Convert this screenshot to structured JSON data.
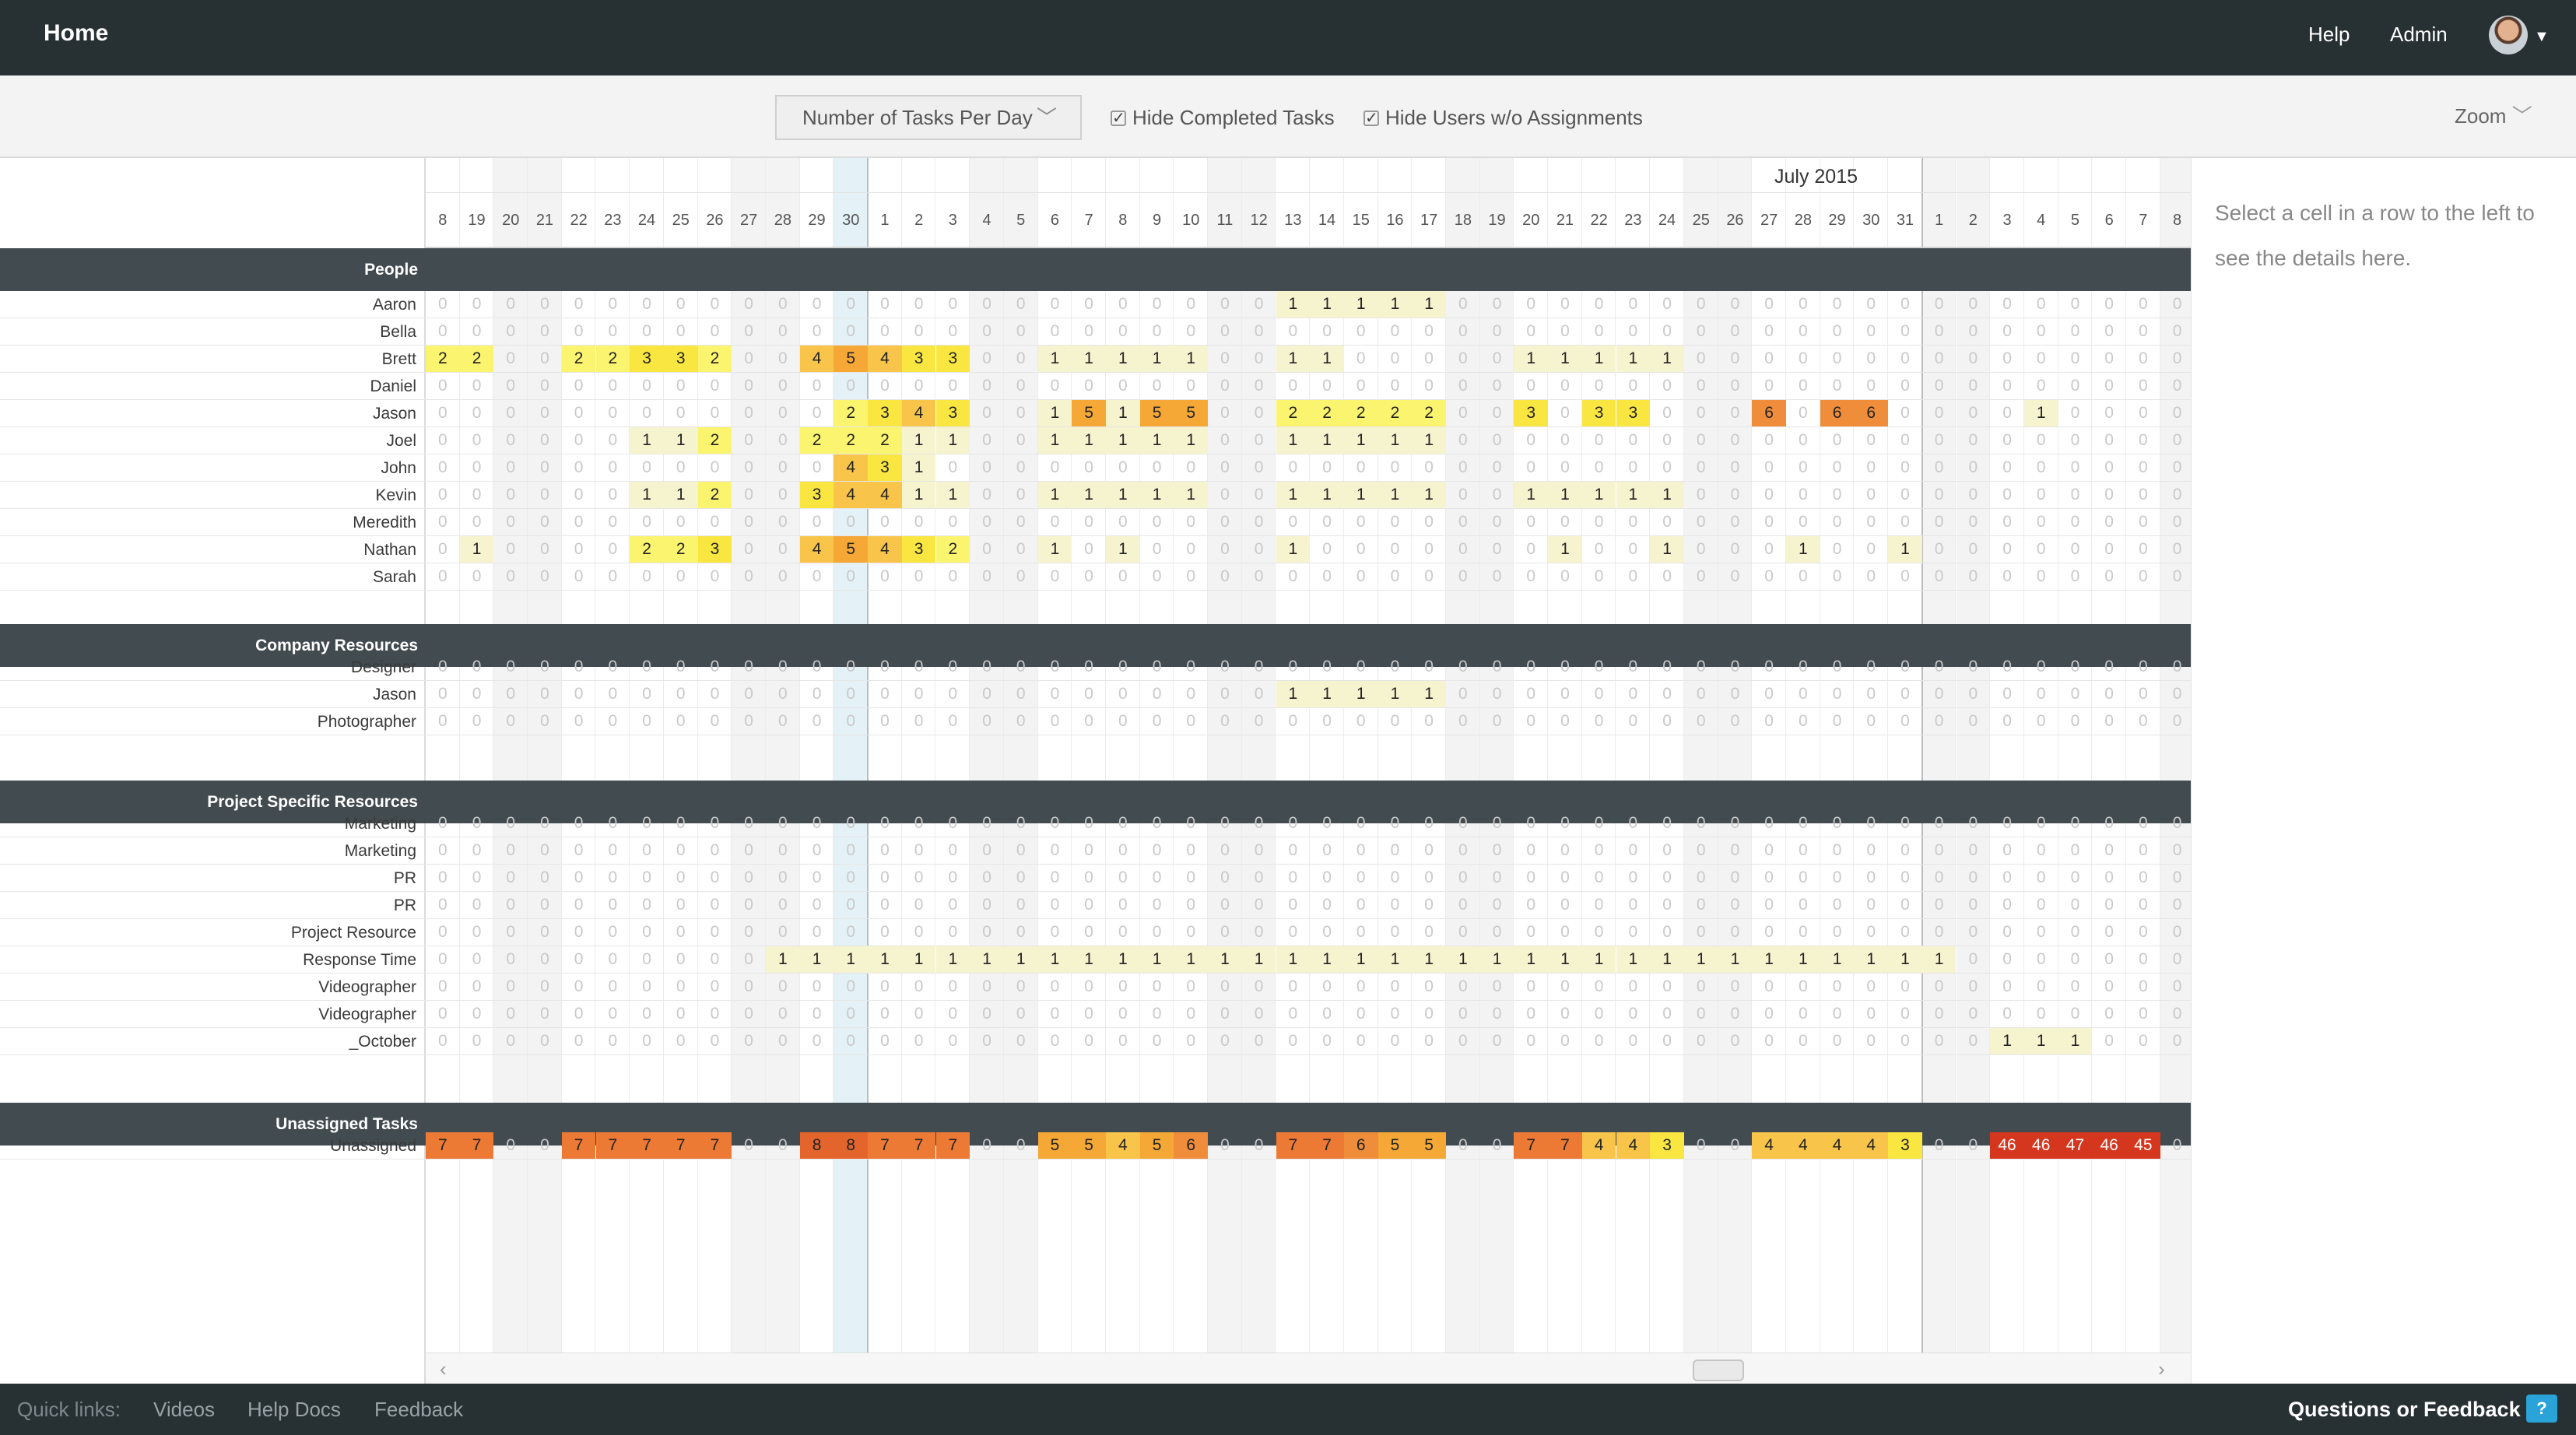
{
  "topbar": {
    "home": "Home",
    "help": "Help",
    "admin": "Admin"
  },
  "toolbar": {
    "view_select": "Number of Tasks Per Day",
    "hide_completed": "Hide Completed Tasks",
    "hide_users": "Hide Users w/o Assignments",
    "zoom": "Zoom"
  },
  "calendar": {
    "month": "July 2015",
    "days": [
      "8",
      "19",
      "20",
      "21",
      "22",
      "23",
      "24",
      "25",
      "26",
      "27",
      "28",
      "29",
      "30",
      "1",
      "2",
      "3",
      "4",
      "5",
      "6",
      "7",
      "8",
      "9",
      "10",
      "11",
      "12",
      "13",
      "14",
      "15",
      "16",
      "17",
      "18",
      "19",
      "20",
      "21",
      "22",
      "23",
      "24",
      "25",
      "26",
      "27",
      "28",
      "29",
      "30",
      "31",
      "1",
      "2",
      "3",
      "4",
      "5",
      "6",
      "7",
      "8"
    ],
    "weekend_cols": [
      2,
      3,
      9,
      10,
      16,
      17,
      23,
      24,
      30,
      31,
      37,
      38,
      44,
      45,
      51
    ],
    "today_col": 12,
    "month_divider_cols": [
      13,
      44
    ]
  },
  "sections": [
    {
      "title": "People",
      "rows": [
        {
          "name": "Aaron",
          "v": {
            "25": 1,
            "26": 1,
            "27": 1,
            "28": 1,
            "29": 1
          }
        },
        {
          "name": "Bella",
          "v": {}
        },
        {
          "name": "Brett",
          "v": {
            "0": 2,
            "1": 2,
            "4": 2,
            "5": 2,
            "6": 3,
            "7": 3,
            "8": 2,
            "11": 4,
            "12": 5,
            "13": 4,
            "14": 3,
            "15": 3,
            "18": 1,
            "19": 1,
            "20": 1,
            "21": 1,
            "22": 1,
            "25": 1,
            "26": 1,
            "32": 1,
            "33": 1,
            "34": 1,
            "35": 1,
            "36": 1
          }
        },
        {
          "name": "Daniel",
          "v": {}
        },
        {
          "name": "Jason",
          "v": {
            "12": 2,
            "13": 3,
            "14": 4,
            "15": 3,
            "18": 1,
            "19": 5,
            "20": 1,
            "21": 5,
            "22": 5,
            "25": 2,
            "26": 2,
            "27": 2,
            "28": 2,
            "29": 2,
            "32": 3,
            "34": 3,
            "35": 3,
            "39": 6,
            "41": 6,
            "42": 6,
            "47": 1
          }
        },
        {
          "name": "Joel",
          "v": {
            "6": 1,
            "7": 1,
            "8": 2,
            "11": 2,
            "12": 2,
            "13": 2,
            "14": 1,
            "15": 1,
            "18": 1,
            "19": 1,
            "20": 1,
            "21": 1,
            "22": 1,
            "25": 1,
            "26": 1,
            "27": 1,
            "28": 1,
            "29": 1
          }
        },
        {
          "name": "John",
          "v": {
            "12": 4,
            "13": 3,
            "14": 1
          }
        },
        {
          "name": "Kevin",
          "v": {
            "6": 1,
            "7": 1,
            "8": 2,
            "11": 3,
            "12": 4,
            "13": 4,
            "14": 1,
            "15": 1,
            "18": 1,
            "19": 1,
            "20": 1,
            "21": 1,
            "22": 1,
            "25": 1,
            "26": 1,
            "27": 1,
            "28": 1,
            "29": 1,
            "32": 1,
            "33": 1,
            "34": 1,
            "35": 1,
            "36": 1
          }
        },
        {
          "name": "Meredith",
          "v": {}
        },
        {
          "name": "Nathan",
          "v": {
            "1": 1,
            "6": 2,
            "7": 2,
            "8": 3,
            "11": 4,
            "12": 5,
            "13": 4,
            "14": 3,
            "15": 2,
            "18": 1,
            "20": 1,
            "25": 1,
            "33": 1,
            "36": 1,
            "40": 1,
            "43": 1
          }
        },
        {
          "name": "Sarah",
          "v": {}
        }
      ]
    },
    {
      "title": "Company Resources",
      "rows": [
        {
          "name": "Designer",
          "v": {}
        },
        {
          "name": "Jason",
          "v": {
            "25": 1,
            "26": 1,
            "27": 1,
            "28": 1,
            "29": 1
          }
        },
        {
          "name": "Photographer",
          "v": {}
        }
      ]
    },
    {
      "title": "Project Specific Resources",
      "rows": [
        {
          "name": "Marketing",
          "v": {}
        },
        {
          "name": "Marketing",
          "v": {}
        },
        {
          "name": "PR",
          "v": {}
        },
        {
          "name": "PR",
          "v": {}
        },
        {
          "name": "Project Resource",
          "v": {}
        },
        {
          "name": "Response Time",
          "v": {
            "10": 1,
            "11": 1,
            "12": 1,
            "13": 1,
            "14": 1,
            "15": 1,
            "16": 1,
            "17": 1,
            "18": 1,
            "19": 1,
            "20": 1,
            "21": 1,
            "22": 1,
            "23": 1,
            "24": 1,
            "25": 1,
            "26": 1,
            "27": 1,
            "28": 1,
            "29": 1,
            "30": 1,
            "31": 1,
            "32": 1,
            "33": 1,
            "34": 1,
            "35": 1,
            "36": 1,
            "37": 1,
            "38": 1,
            "39": 1,
            "40": 1,
            "41": 1,
            "42": 1,
            "43": 1,
            "44": 1
          }
        },
        {
          "name": "Videographer",
          "v": {}
        },
        {
          "name": "Videographer",
          "v": {}
        },
        {
          "name": "_October",
          "v": {
            "46": 1,
            "47": 1,
            "48": 1
          }
        }
      ]
    },
    {
      "title": "Unassigned Tasks",
      "rows": [
        {
          "name": "Unassigned",
          "v": {
            "0": 7,
            "1": 7,
            "4": 7,
            "5": 7,
            "6": 7,
            "7": 7,
            "8": 7,
            "11": 8,
            "12": 8,
            "13": 7,
            "14": 7,
            "15": 7,
            "18": 5,
            "19": 5,
            "20": 4,
            "21": 5,
            "22": 6,
            "25": 7,
            "26": 7,
            "27": 6,
            "28": 5,
            "29": 5,
            "32": 7,
            "33": 7,
            "34": 4,
            "35": 4,
            "36": 3,
            "39": 4,
            "40": 4,
            "41": 4,
            "42": 4,
            "43": 3,
            "46": 46,
            "47": 46,
            "48": 47,
            "49": 46,
            "50": 45
          }
        }
      ]
    }
  ],
  "heat_colors": {
    "1": "#f6f3cf",
    "2": "#fbf46f",
    "3": "#f9e640",
    "4": "#f8c54a",
    "5": "#f5a836",
    "6": "#ef8d3b",
    "7": "#ed7a34",
    "8": "#e4652b",
    "high": "#d5361e"
  },
  "details": {
    "message": "Select a cell in a row to the left to see the details here."
  },
  "footer": {
    "quick_links": "Quick links:",
    "videos": "Videos",
    "help_docs": "Help Docs",
    "feedback": "Feedback",
    "questions": "Questions or Feedback"
  }
}
